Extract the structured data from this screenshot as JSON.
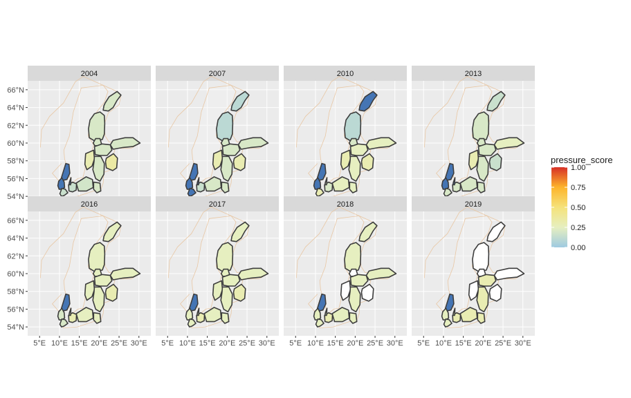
{
  "chart_data": {
    "type": "choropleth-map",
    "facet_by": "year",
    "facets": [
      {
        "year": "2004",
        "regions": {
          "bothnian_bay": 0.2,
          "bothnian_sea": 0.2,
          "aland": 0.2,
          "gulf_finland": 0.2,
          "n_baltic": 0.2,
          "w_gotland": 0.3,
          "e_gotland": 0.2,
          "riga": 0.35,
          "gdansk": 0.2,
          "bornholm": 0.18,
          "arkona": 0.15,
          "kattegat": 0.05,
          "sound": 0.0,
          "belts": 0.05,
          "kiel": 0.15
        }
      },
      {
        "year": "2007",
        "regions": {
          "bothnian_bay": 0.1,
          "bothnian_sea": 0.1,
          "aland": 0.2,
          "gulf_finland": 0.2,
          "n_baltic": 0.2,
          "w_gotland": 0.3,
          "e_gotland": 0.2,
          "riga": 0.3,
          "gdansk": 0.2,
          "bornholm": 0.2,
          "arkona": 0.15,
          "kattegat": 0.05,
          "sound": 0.0,
          "belts": 0.05,
          "kiel": 0.05
        }
      },
      {
        "year": "2010",
        "regions": {
          "bothnian_bay": 0.05,
          "bothnian_sea": 0.1,
          "aland": 0.2,
          "gulf_finland": 0.25,
          "n_baltic": 0.25,
          "w_gotland": 0.3,
          "e_gotland": 0.25,
          "riga": 0.3,
          "gdansk": 0.25,
          "bornholm": 0.25,
          "arkona": 0.2,
          "kattegat": 0.05,
          "sound": 0.2,
          "belts": 0.05,
          "kiel": 0.3
        }
      },
      {
        "year": "2013",
        "regions": {
          "bothnian_bay": 0.15,
          "bothnian_sea": 0.2,
          "aland": 0.2,
          "gulf_finland": 0.25,
          "n_baltic": 0.2,
          "w_gotland": 0.3,
          "e_gotland": 0.2,
          "riga": 0.15,
          "gdansk": 0.2,
          "bornholm": 0.2,
          "arkona": 0.2,
          "kattegat": 0.05,
          "sound": 0.0,
          "belts": 0.05,
          "kiel": 0.2
        }
      },
      {
        "year": "2016",
        "regions": {
          "bothnian_bay": 0.25,
          "bothnian_sea": 0.25,
          "aland": 0.25,
          "gulf_finland": 0.25,
          "n_baltic": 0.25,
          "w_gotland": 0.25,
          "e_gotland": 0.25,
          "riga": 0.3,
          "gdansk": 0.25,
          "bornholm": 0.25,
          "arkona": 0.3,
          "kattegat": 0.05,
          "sound": 0.25,
          "belts": 0.2,
          "kiel": 0.2
        }
      },
      {
        "year": "2017",
        "regions": {
          "bothnian_bay": 0.25,
          "bothnian_sea": 0.25,
          "aland": 0.25,
          "gulf_finland": 0.25,
          "n_baltic": 0.25,
          "w_gotland": 0.25,
          "e_gotland": 0.25,
          "riga": 0.3,
          "gdansk": 0.25,
          "bornholm": 0.25,
          "arkona": 0.3,
          "kattegat": 0.05,
          "sound": 0.25,
          "belts": 0.25,
          "kiel": 0.25
        }
      },
      {
        "year": "2018",
        "regions": {
          "bothnian_bay": 0.25,
          "bothnian_sea": 0.25,
          "aland": null,
          "gulf_finland": 0.25,
          "n_baltic": 0.25,
          "w_gotland": null,
          "e_gotland": 0.25,
          "riga": null,
          "gdansk": 0.25,
          "bornholm": 0.25,
          "arkona": 0.3,
          "kattegat": 0.05,
          "sound": 0.25,
          "belts": 0.25,
          "kiel": 0.25
        }
      },
      {
        "year": "2019",
        "regions": {
          "bothnian_bay": null,
          "bothnian_sea": null,
          "aland": null,
          "gulf_finland": null,
          "n_baltic": 0.3,
          "w_gotland": null,
          "e_gotland": 0.3,
          "riga": null,
          "gdansk": 0.3,
          "bornholm": 0.3,
          "arkona": 0.3,
          "kattegat": 0.05,
          "sound": 0.25,
          "belts": 0.25,
          "kiel": 0.25
        }
      }
    ],
    "xlabel": "",
    "ylabel": "",
    "x_ticks": [
      "5°E",
      "10°E",
      "15°E",
      "20°E",
      "25°E",
      "30°E"
    ],
    "x_tick_values": [
      5,
      10,
      15,
      20,
      25,
      30
    ],
    "y_ticks": [
      "54°N",
      "56°N",
      "58°N",
      "60°N",
      "62°N",
      "64°N",
      "66°N"
    ],
    "y_tick_values": [
      54,
      56,
      58,
      60,
      62,
      64,
      66
    ],
    "xlim": [
      2,
      33
    ],
    "ylim": [
      53,
      67
    ],
    "legend": {
      "title": "pressure_score",
      "position": "right",
      "labels": [
        "0.00",
        "0.25",
        "0.50",
        "0.75",
        "1.00"
      ],
      "values": [
        0,
        0.25,
        0.5,
        0.75,
        1.0
      ],
      "colors": [
        "#9ECAE1",
        "#E6EFC0",
        "#F5E27A",
        "#FDB42B",
        "#D73027"
      ]
    },
    "colors": {
      "na_fill": "#ffffff",
      "panel_background": "#ebebeb",
      "strip_background": "#d9d9d9",
      "grid": "#ffffff",
      "outline": "#3d3d3d",
      "land_border": "#e8c7a4",
      "low_score_blue": "#4575b4"
    }
  }
}
